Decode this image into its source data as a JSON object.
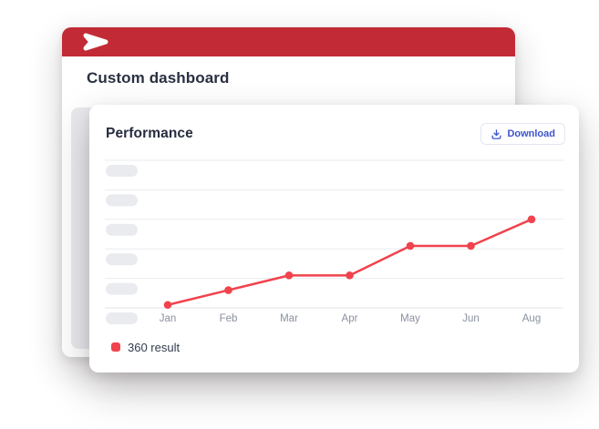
{
  "back_card": {
    "title": "Custom dashboard",
    "brand_bar": {
      "color": "#C22A35",
      "logo_icon": "brand-arrow-logo"
    },
    "skeleton_panel_color": "#E9EAEE"
  },
  "front_card": {
    "title": "Performance",
    "download_button": {
      "label": "Download",
      "icon": "download-icon",
      "color": "#3E53CC",
      "border_color": "#E3E6F0"
    }
  },
  "legend": {
    "label": "360 result",
    "swatch_color": "#F0434D"
  },
  "chart_data": {
    "type": "line",
    "title": "Performance",
    "categories": [
      "Jan",
      "Feb",
      "Mar",
      "Apr",
      "May",
      "Jun",
      "Aug"
    ],
    "series": [
      {
        "name": "360 result",
        "color": "#F0434D",
        "values": [
          2,
          12,
          22,
          22,
          42,
          42,
          60
        ]
      }
    ],
    "xlabel": "",
    "ylabel": "",
    "ylim": [
      0,
      100
    ],
    "y_axis": {
      "style": "skeleton-pills-no-text",
      "tick_count": 6,
      "pill_color": "#EAEBEF"
    },
    "grid": {
      "show": true,
      "color": "#E9EBEF",
      "axis_color": "#E0E3E9"
    },
    "x_tick_color": "#8A90A0",
    "legend_position": "bottom-left",
    "note": "y-axis tick labels are shown as gray placeholder pills with no text; Jul is skipped between Jun and Aug"
  }
}
